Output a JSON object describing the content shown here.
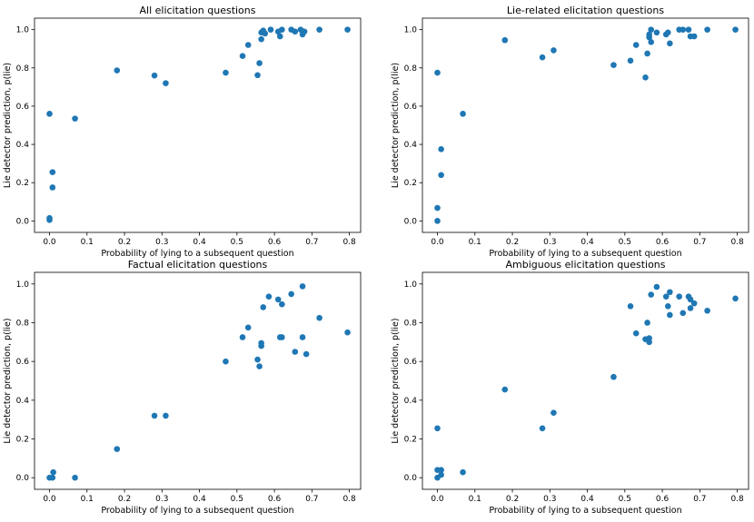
{
  "chart_data": [
    {
      "type": "scatter",
      "title": "All elicitation questions",
      "xlabel": "Probability of lying to a subsequent question",
      "ylabel": "Lie detector prediction, p(lie)",
      "xlim": [
        -0.04,
        0.83
      ],
      "ylim": [
        -0.06,
        1.06
      ],
      "xticks": [
        "0.0",
        "0.1",
        "0.2",
        "0.3",
        "0.4",
        "0.5",
        "0.6",
        "0.7",
        "0.8"
      ],
      "yticks": [
        "0.0",
        "0.2",
        "0.4",
        "0.6",
        "0.8",
        "1.0"
      ],
      "color": "#1f77b4",
      "points": [
        {
          "x": 0.0,
          "y": 0.56
        },
        {
          "x": 0.0,
          "y": 0.005
        },
        {
          "x": 0.0,
          "y": 0.015
        },
        {
          "x": 0.008,
          "y": 0.255
        },
        {
          "x": 0.008,
          "y": 0.175
        },
        {
          "x": 0.068,
          "y": 0.535
        },
        {
          "x": 0.18,
          "y": 0.787
        },
        {
          "x": 0.28,
          "y": 0.76
        },
        {
          "x": 0.31,
          "y": 0.72
        },
        {
          "x": 0.47,
          "y": 0.775
        },
        {
          "x": 0.515,
          "y": 0.862
        },
        {
          "x": 0.53,
          "y": 0.92
        },
        {
          "x": 0.555,
          "y": 0.762
        },
        {
          "x": 0.56,
          "y": 0.825
        },
        {
          "x": 0.565,
          "y": 0.95
        },
        {
          "x": 0.565,
          "y": 0.985
        },
        {
          "x": 0.57,
          "y": 0.995
        },
        {
          "x": 0.575,
          "y": 0.98
        },
        {
          "x": 0.59,
          "y": 1.0
        },
        {
          "x": 0.61,
          "y": 0.99
        },
        {
          "x": 0.615,
          "y": 0.965
        },
        {
          "x": 0.62,
          "y": 1.0
        },
        {
          "x": 0.645,
          "y": 1.0
        },
        {
          "x": 0.655,
          "y": 0.99
        },
        {
          "x": 0.67,
          "y": 1.0
        },
        {
          "x": 0.675,
          "y": 0.975
        },
        {
          "x": 0.68,
          "y": 0.99
        },
        {
          "x": 0.72,
          "y": 1.0
        },
        {
          "x": 0.795,
          "y": 1.0
        }
      ]
    },
    {
      "type": "scatter",
      "title": "Lie-related elicitation questions",
      "xlabel": "Probability of lying to a subsequent question",
      "ylabel": "Lie detector prediction, p(lie)",
      "xlim": [
        -0.04,
        0.83
      ],
      "ylim": [
        -0.06,
        1.06
      ],
      "xticks": [
        "0.0",
        "0.1",
        "0.2",
        "0.3",
        "0.4",
        "0.5",
        "0.6",
        "0.7",
        "0.8"
      ],
      "yticks": [
        "0.0",
        "0.2",
        "0.4",
        "0.6",
        "0.8",
        "1.0"
      ],
      "color": "#1f77b4",
      "points": [
        {
          "x": 0.0,
          "y": 0.775
        },
        {
          "x": 0.0,
          "y": 0.068
        },
        {
          "x": 0.0,
          "y": 0.0
        },
        {
          "x": 0.01,
          "y": 0.375
        },
        {
          "x": 0.01,
          "y": 0.24
        },
        {
          "x": 0.068,
          "y": 0.56
        },
        {
          "x": 0.18,
          "y": 0.945
        },
        {
          "x": 0.28,
          "y": 0.855
        },
        {
          "x": 0.31,
          "y": 0.892
        },
        {
          "x": 0.47,
          "y": 0.815
        },
        {
          "x": 0.515,
          "y": 0.838
        },
        {
          "x": 0.53,
          "y": 0.92
        },
        {
          "x": 0.555,
          "y": 0.75
        },
        {
          "x": 0.56,
          "y": 0.875
        },
        {
          "x": 0.565,
          "y": 0.96
        },
        {
          "x": 0.565,
          "y": 0.975
        },
        {
          "x": 0.57,
          "y": 1.0
        },
        {
          "x": 0.57,
          "y": 0.935
        },
        {
          "x": 0.585,
          "y": 0.985
        },
        {
          "x": 0.61,
          "y": 0.975
        },
        {
          "x": 0.615,
          "y": 0.985
        },
        {
          "x": 0.62,
          "y": 0.928
        },
        {
          "x": 0.645,
          "y": 1.0
        },
        {
          "x": 0.655,
          "y": 1.0
        },
        {
          "x": 0.67,
          "y": 1.0
        },
        {
          "x": 0.675,
          "y": 0.965
        },
        {
          "x": 0.685,
          "y": 0.965
        },
        {
          "x": 0.72,
          "y": 1.0
        },
        {
          "x": 0.795,
          "y": 1.0
        }
      ]
    },
    {
      "type": "scatter",
      "title": "Factual elicitation questions",
      "xlabel": "Probability of lying to a subsequent question",
      "ylabel": "Lie detector prediction, p(lie)",
      "xlim": [
        -0.04,
        0.83
      ],
      "ylim": [
        -0.06,
        1.06
      ],
      "xticks": [
        "0.0",
        "0.1",
        "0.2",
        "0.3",
        "0.4",
        "0.5",
        "0.6",
        "0.7",
        "0.8"
      ],
      "yticks": [
        "0.0",
        "0.2",
        "0.4",
        "0.6",
        "0.8",
        "1.0"
      ],
      "color": "#1f77b4",
      "points": [
        {
          "x": 0.0,
          "y": 0.0
        },
        {
          "x": 0.008,
          "y": 0.0
        },
        {
          "x": 0.01,
          "y": 0.028
        },
        {
          "x": 0.068,
          "y": 0.0
        },
        {
          "x": 0.18,
          "y": 0.148
        },
        {
          "x": 0.28,
          "y": 0.32
        },
        {
          "x": 0.31,
          "y": 0.32
        },
        {
          "x": 0.47,
          "y": 0.6
        },
        {
          "x": 0.515,
          "y": 0.725
        },
        {
          "x": 0.53,
          "y": 0.775
        },
        {
          "x": 0.555,
          "y": 0.61
        },
        {
          "x": 0.56,
          "y": 0.575
        },
        {
          "x": 0.565,
          "y": 0.68
        },
        {
          "x": 0.565,
          "y": 0.695
        },
        {
          "x": 0.57,
          "y": 0.88
        },
        {
          "x": 0.585,
          "y": 0.935
        },
        {
          "x": 0.61,
          "y": 0.92
        },
        {
          "x": 0.615,
          "y": 0.725
        },
        {
          "x": 0.62,
          "y": 0.725
        },
        {
          "x": 0.62,
          "y": 0.895
        },
        {
          "x": 0.645,
          "y": 0.948
        },
        {
          "x": 0.655,
          "y": 0.65
        },
        {
          "x": 0.675,
          "y": 0.725
        },
        {
          "x": 0.675,
          "y": 0.988
        },
        {
          "x": 0.685,
          "y": 0.638
        },
        {
          "x": 0.72,
          "y": 0.825
        },
        {
          "x": 0.795,
          "y": 0.75
        }
      ]
    },
    {
      "type": "scatter",
      "title": "Ambiguous elicitation questions",
      "xlabel": "Probability of lying to a subsequent question",
      "ylabel": "Lie detector prediction, p(lie)",
      "xlim": [
        -0.04,
        0.83
      ],
      "ylim": [
        -0.06,
        1.06
      ],
      "xticks": [
        "0.0",
        "0.1",
        "0.2",
        "0.3",
        "0.4",
        "0.5",
        "0.6",
        "0.7",
        "0.8"
      ],
      "yticks": [
        "0.0",
        "0.2",
        "0.4",
        "0.6",
        "0.8",
        "1.0"
      ],
      "color": "#1f77b4",
      "points": [
        {
          "x": 0.0,
          "y": 0.255
        },
        {
          "x": 0.0,
          "y": 0.04
        },
        {
          "x": 0.0,
          "y": 0.0
        },
        {
          "x": 0.01,
          "y": 0.04
        },
        {
          "x": 0.01,
          "y": 0.015
        },
        {
          "x": 0.068,
          "y": 0.028
        },
        {
          "x": 0.18,
          "y": 0.455
        },
        {
          "x": 0.28,
          "y": 0.255
        },
        {
          "x": 0.31,
          "y": 0.335
        },
        {
          "x": 0.47,
          "y": 0.52
        },
        {
          "x": 0.515,
          "y": 0.885
        },
        {
          "x": 0.53,
          "y": 0.745
        },
        {
          "x": 0.555,
          "y": 0.715
        },
        {
          "x": 0.56,
          "y": 0.8
        },
        {
          "x": 0.565,
          "y": 0.72
        },
        {
          "x": 0.565,
          "y": 0.7
        },
        {
          "x": 0.57,
          "y": 0.945
        },
        {
          "x": 0.585,
          "y": 0.985
        },
        {
          "x": 0.61,
          "y": 0.935
        },
        {
          "x": 0.615,
          "y": 0.885
        },
        {
          "x": 0.62,
          "y": 0.958
        },
        {
          "x": 0.62,
          "y": 0.84
        },
        {
          "x": 0.645,
          "y": 0.935
        },
        {
          "x": 0.655,
          "y": 0.85
        },
        {
          "x": 0.67,
          "y": 0.935
        },
        {
          "x": 0.675,
          "y": 0.92
        },
        {
          "x": 0.685,
          "y": 0.9
        },
        {
          "x": 0.675,
          "y": 0.875
        },
        {
          "x": 0.72,
          "y": 0.862
        },
        {
          "x": 0.795,
          "y": 0.925
        }
      ]
    }
  ]
}
